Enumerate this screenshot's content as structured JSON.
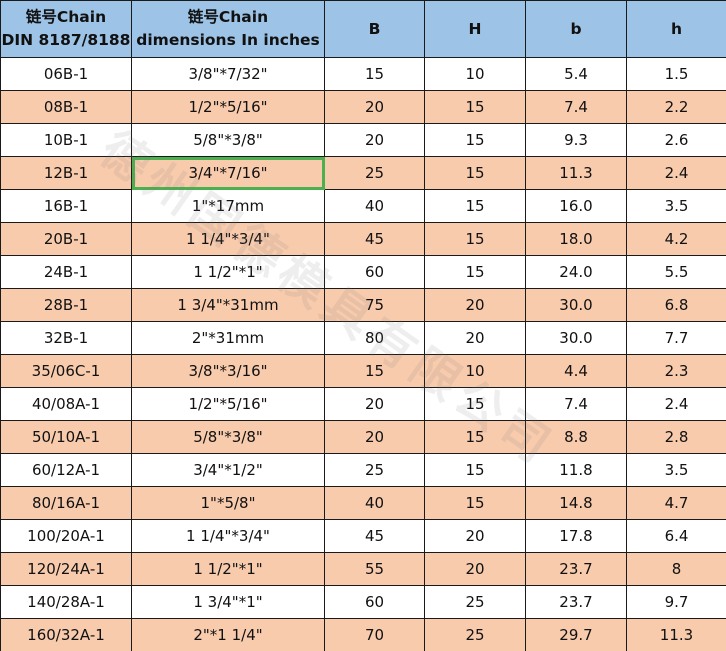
{
  "headers": [
    [
      "链号Chain",
      "DIN 8187/8188"
    ],
    [
      "链号Chain",
      "dimensions In inches"
    ],
    [
      "B"
    ],
    [
      "H"
    ],
    [
      "b"
    ],
    [
      "h"
    ]
  ],
  "rows": [
    [
      "06B-1",
      "3/8\"*7/32\"",
      "15",
      "10",
      "5.4",
      "1.5"
    ],
    [
      "08B-1",
      "1/2\"*5/16\"",
      "20",
      "15",
      "7.4",
      "2.2"
    ],
    [
      "10B-1",
      "5/8\"*3/8\"",
      "20",
      "15",
      "9.3",
      "2.6"
    ],
    [
      "12B-1",
      "3/4\"*7/16\"",
      "25",
      "15",
      "11.3",
      "2.4"
    ],
    [
      "16B-1",
      "1\"*17mm",
      "40",
      "15",
      "16.0",
      "3.5"
    ],
    [
      "20B-1",
      "1 1/4\"*3/4\"",
      "45",
      "15",
      "18.0",
      "4.2"
    ],
    [
      "24B-1",
      "1 1/2\"*1\"",
      "60",
      "15",
      "24.0",
      "5.5"
    ],
    [
      "28B-1",
      "1 3/4\"*31mm",
      "75",
      "20",
      "30.0",
      "6.8"
    ],
    [
      "32B-1",
      "2\"*31mm",
      "80",
      "20",
      "30.0",
      "7.7"
    ],
    [
      "35/06C-1",
      "3/8\"*3/16\"",
      "15",
      "10",
      "4.4",
      "2.3"
    ],
    [
      "40/08A-1",
      "1/2\"*5/16\"",
      "20",
      "15",
      "7.4",
      "2.4"
    ],
    [
      "50/10A-1",
      "5/8\"*3/8\"",
      "20",
      "15",
      "8.8",
      "2.8"
    ],
    [
      "60/12A-1",
      "3/4\"*1/2\"",
      "25",
      "15",
      "11.8",
      "3.5"
    ],
    [
      "80/16A-1",
      "1\"*5/8\"",
      "40",
      "15",
      "14.8",
      "4.7"
    ],
    [
      "100/20A-1",
      "1 1/4\"*3/4\"",
      "45",
      "20",
      "17.8",
      "6.4"
    ],
    [
      "120/24A-1",
      "1 1/2\"*1\"",
      "55",
      "20",
      "23.7",
      "8"
    ],
    [
      "140/28A-1",
      "1 3/4\"*1\"",
      "60",
      "25",
      "23.7",
      "9.7"
    ],
    [
      "160/32A-1",
      "2\"*1 1/4\"",
      "70",
      "25",
      "29.7",
      "11.3"
    ]
  ],
  "selected_cell": {
    "row": 3,
    "col": 1
  },
  "watermark": "德州国德模具有限公司",
  "colors": {
    "header": "#9dc3e6",
    "alt_row": "#f8cbad",
    "selection": "#4caf50"
  }
}
